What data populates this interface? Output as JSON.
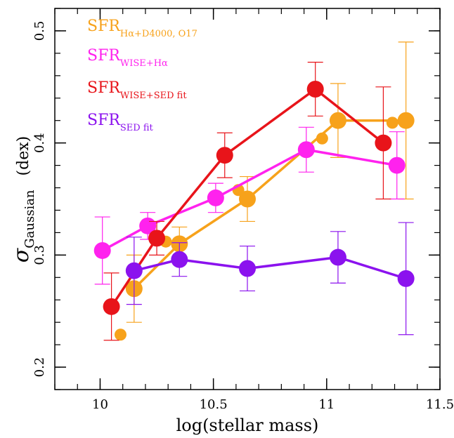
{
  "chart_data": {
    "type": "scatter",
    "xlabel": "log(stellar mass)",
    "ylabel": {
      "symbol": "σ",
      "subscript": "Gaussian",
      "unit": "(dex)"
    },
    "xlim": [
      9.8,
      11.5
    ],
    "ylim": [
      0.18,
      0.52
    ],
    "x_ticks": [
      {
        "value": 10,
        "label": "10"
      },
      {
        "value": 10.5,
        "label": "10.5"
      },
      {
        "value": 11,
        "label": "11"
      },
      {
        "value": 11.5,
        "label": "11.5"
      }
    ],
    "y_ticks": [
      {
        "value": 0.2,
        "label": "0.2"
      },
      {
        "value": 0.3,
        "label": "0.3"
      },
      {
        "value": 0.4,
        "label": "0.4"
      },
      {
        "value": 0.5,
        "label": "0.5"
      }
    ],
    "x_minor_step": 0.1,
    "y_minor_step": 0.02,
    "grid": false,
    "legend_position": "top-left",
    "series": [
      {
        "name": "SFR",
        "name_sub": "Hα+D4000, O17",
        "color": "#f7a21b",
        "line": true,
        "points": [
          {
            "x": 10.15,
            "y": 0.27,
            "err": 0.03
          },
          {
            "x": 10.35,
            "y": 0.31,
            "err": 0.015
          },
          {
            "x": 10.65,
            "y": 0.35,
            "err": 0.02
          },
          {
            "x": 11.05,
            "y": 0.42,
            "err": 0.033
          },
          {
            "x": 11.35,
            "y": 0.42,
            "err": 0.07
          }
        ],
        "small_points": [
          {
            "x": 10.09,
            "y": 0.229
          },
          {
            "x": 10.29,
            "y": 0.312
          },
          {
            "x": 10.61,
            "y": 0.358
          },
          {
            "x": 10.98,
            "y": 0.404
          },
          {
            "x": 11.29,
            "y": 0.418
          }
        ]
      },
      {
        "name": "SFR",
        "name_sub": "WISE+Hα",
        "color": "#ff22ee",
        "line": true,
        "points": [
          {
            "x": 10.01,
            "y": 0.304,
            "err": 0.03
          },
          {
            "x": 10.21,
            "y": 0.326,
            "err": 0.012
          },
          {
            "x": 10.51,
            "y": 0.351,
            "err": 0.013
          },
          {
            "x": 10.91,
            "y": 0.394,
            "err": 0.02
          },
          {
            "x": 11.31,
            "y": 0.38,
            "err": 0.03
          }
        ]
      },
      {
        "name": "SFR",
        "name_sub": "WISE+SED fit",
        "color": "#e8141a",
        "line": true,
        "points": [
          {
            "x": 10.05,
            "y": 0.254,
            "err": 0.03
          },
          {
            "x": 10.25,
            "y": 0.315,
            "err": 0.015
          },
          {
            "x": 10.55,
            "y": 0.389,
            "err": 0.02
          },
          {
            "x": 10.95,
            "y": 0.448,
            "err": 0.024
          },
          {
            "x": 11.25,
            "y": 0.4,
            "err": 0.05
          }
        ]
      },
      {
        "name": "SFR",
        "name_sub": "SED fit",
        "color": "#8b12ee",
        "line": true,
        "points": [
          {
            "x": 10.15,
            "y": 0.286,
            "err": 0.03
          },
          {
            "x": 10.35,
            "y": 0.296,
            "err": 0.015
          },
          {
            "x": 10.65,
            "y": 0.288,
            "err": 0.02
          },
          {
            "x": 11.05,
            "y": 0.298,
            "err": 0.023
          },
          {
            "x": 11.35,
            "y": 0.279,
            "err": 0.05
          }
        ]
      }
    ]
  }
}
